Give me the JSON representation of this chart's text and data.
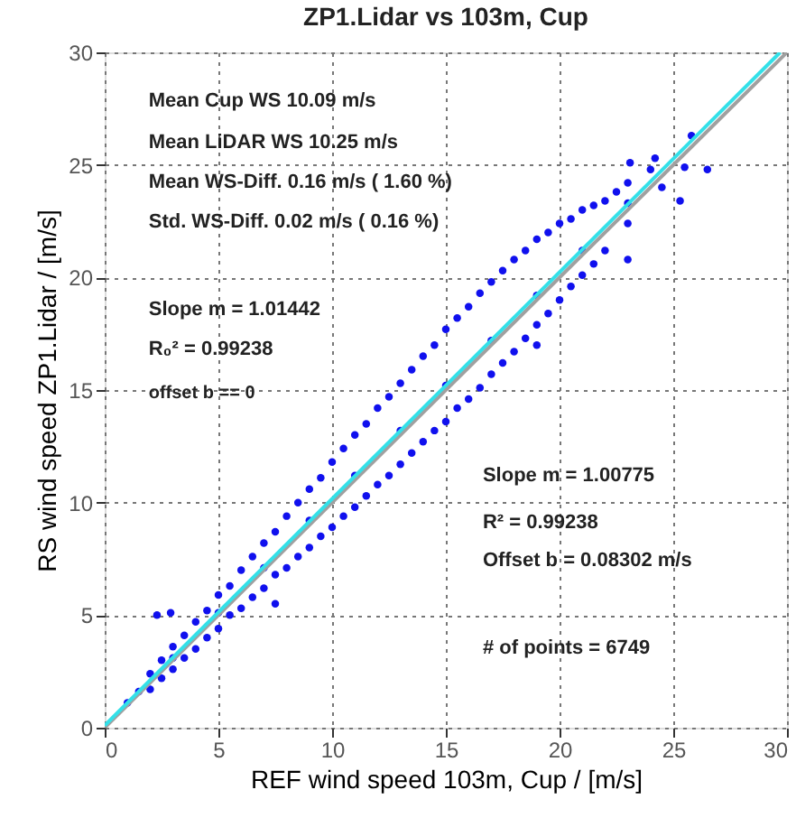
{
  "chart_data": {
    "type": "scatter",
    "title": "ZP1.Lidar  vs  103m, Cup",
    "xlabel": "REF wind speed  103m, Cup / [m/s]",
    "ylabel": "RS wind speed ZP1.Lidar / [m/s]",
    "xlim": [
      0,
      30
    ],
    "ylim": [
      0,
      30
    ],
    "xticks": [
      0,
      5,
      10,
      15,
      20,
      25,
      30
    ],
    "yticks": [
      0,
      5,
      10,
      15,
      20,
      25,
      30
    ],
    "grid": true,
    "marker": "circle",
    "series": [
      {
        "color": "#1010ee",
        "x": [
          1.5,
          2,
          2,
          2.5,
          2.5,
          3,
          3,
          3.5,
          3.5,
          4,
          4,
          4.5,
          4.5,
          5,
          5,
          5.5,
          5.5,
          6,
          6,
          6.5,
          6.5,
          7,
          7,
          7.5,
          7.5,
          8,
          8,
          8.5,
          8.5,
          9,
          9,
          9.5,
          9.5,
          10,
          10,
          10.5,
          10.5,
          11,
          11,
          11.5,
          11.5,
          12,
          12,
          12.5,
          12.5,
          13,
          13,
          13.5,
          13.5,
          14,
          14,
          14.5,
          14.5,
          15,
          15,
          15.5,
          15.5,
          16,
          16,
          16.5,
          16.5,
          17,
          17,
          17.5,
          17.5,
          18,
          18,
          18.5,
          18.5,
          19,
          19,
          19.5,
          19.5,
          20,
          20,
          20.5,
          20.5,
          21,
          21,
          21.5,
          21.5,
          22,
          22,
          22.5,
          23,
          23,
          24,
          24.5,
          2.3,
          2.9,
          7.5,
          26.5,
          25.5,
          25.3,
          23.1,
          24.2,
          23.0,
          19.0,
          25.8,
          1,
          3,
          5,
          7,
          9,
          11,
          13,
          15,
          17,
          19,
          21,
          23
        ],
        "values": [
          1.6,
          2.4,
          1.7,
          3.0,
          2.2,
          3.6,
          2.6,
          4.1,
          3.1,
          4.7,
          3.5,
          5.2,
          4.0,
          5.9,
          4.4,
          6.3,
          5.0,
          7.0,
          5.3,
          7.6,
          5.8,
          8.2,
          6.2,
          8.7,
          6.8,
          9.4,
          7.1,
          10.0,
          7.6,
          10.6,
          8.0,
          11.1,
          8.5,
          11.8,
          8.9,
          12.4,
          9.4,
          13.0,
          9.8,
          13.5,
          10.3,
          14.2,
          10.8,
          14.7,
          11.2,
          15.3,
          11.7,
          15.9,
          12.2,
          16.5,
          12.7,
          17.0,
          13.2,
          17.7,
          13.6,
          18.2,
          14.2,
          18.7,
          14.6,
          19.3,
          15.1,
          19.8,
          15.7,
          20.3,
          16.2,
          20.8,
          16.7,
          21.2,
          17.3,
          21.7,
          17.9,
          22.0,
          18.4,
          22.4,
          19.0,
          22.6,
          19.6,
          23.0,
          20.1,
          23.2,
          20.6,
          23.4,
          21.2,
          23.8,
          24.2,
          22.4,
          24.8,
          24.0,
          5.0,
          5.1,
          5.5,
          24.8,
          24.9,
          23.4,
          25.1,
          25.3,
          20.8,
          17.0,
          26.3,
          1.1,
          3.1,
          5.1,
          7.1,
          9.2,
          11.2,
          13.2,
          15.2,
          17.2,
          19.2,
          21.2,
          23.3
        ]
      },
      {
        "type": "line",
        "marker": "none",
        "color": "#a0a0a0",
        "x": [
          0,
          30
        ],
        "values": [
          0,
          30
        ]
      },
      {
        "type": "line",
        "marker": "none",
        "color": "#33e0e8",
        "x": [
          0,
          29.7
        ],
        "values": [
          0.1,
          30
        ]
      }
    ],
    "annotations": [
      "Mean Cup WS   10.09 m/s",
      "Mean LiDAR WS   10.25 m/s",
      "Mean WS-Diff.    0.16 m/s (  1.60 %)",
      "Std. WS-Diff.    0.02 m/s (  0.16 %)",
      "Slope m =  1.01442",
      "R₀² = 0.99238",
      "offset b ==   0",
      "Slope m =  1.00775",
      "R² = 0.99238",
      "Offset b =  0.08302 m/s",
      "# of points = 6749"
    ]
  }
}
